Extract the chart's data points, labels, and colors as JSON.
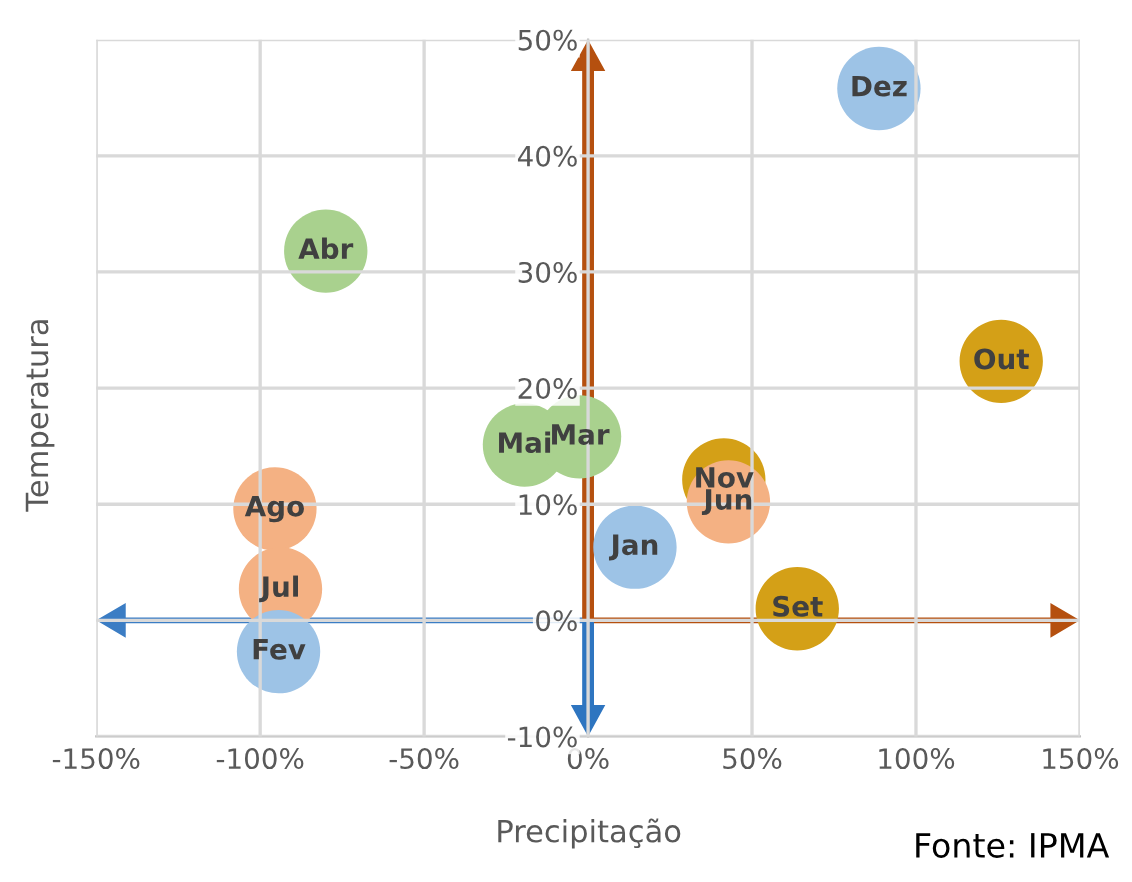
{
  "chart_data": {
    "type": "scatter",
    "xlabel": "Precipitação",
    "ylabel": "Temperatura",
    "annotations": [
      "Fonte: IPMA"
    ],
    "xlim": [
      -150,
      150
    ],
    "ylim": [
      -10,
      50
    ],
    "xticks": [
      {
        "value": -150,
        "label": "-150%"
      },
      {
        "value": -100,
        "label": "-100%"
      },
      {
        "value": -50,
        "label": "-50%"
      },
      {
        "value": 0,
        "label": "0%"
      },
      {
        "value": 50,
        "label": "50%"
      },
      {
        "value": 100,
        "label": "100%"
      },
      {
        "value": 150,
        "label": "150%"
      }
    ],
    "yticks": [
      {
        "value": -10,
        "label": "-10%"
      },
      {
        "value": 0,
        "label": "0%"
      },
      {
        "value": 10,
        "label": "10%"
      },
      {
        "value": 20,
        "label": "20%"
      },
      {
        "value": 30,
        "label": "30%"
      },
      {
        "value": 40,
        "label": "40%"
      },
      {
        "value": 50,
        "label": "50%"
      }
    ],
    "grid": true,
    "marker": "circle",
    "series": [
      {
        "name": "Dez",
        "color": "#9dc3e6",
        "x": [
          88.7
        ],
        "values": [
          45.8
        ]
      },
      {
        "name": "Abr",
        "color": "#a9d18e",
        "x": [
          -80
        ],
        "values": [
          31.8
        ]
      },
      {
        "name": "Out",
        "color": "#d4a017",
        "x": [
          126
        ],
        "values": [
          22.3
        ]
      },
      {
        "name": "Mai",
        "color": "#a9d18e",
        "x": [
          -19.4
        ],
        "values": [
          15.1
        ]
      },
      {
        "name": "Mar",
        "color": "#a9d18e",
        "x": [
          -2.6
        ],
        "values": [
          15.8
        ]
      },
      {
        "name": "Nov",
        "color": "#d4a017",
        "x": [
          41.4
        ],
        "values": [
          12.1
        ]
      },
      {
        "name": "Jun",
        "color": "#f4b183",
        "x": [
          42.8
        ],
        "values": [
          10.2
        ]
      },
      {
        "name": "Ago",
        "color": "#f4b183",
        "x": [
          -95.5
        ],
        "values": [
          9.6
        ]
      },
      {
        "name": "Jan",
        "color": "#9dc3e6",
        "x": [
          14.3
        ],
        "values": [
          6.3
        ]
      },
      {
        "name": "Jul",
        "color": "#f4b183",
        "x": [
          -93.8
        ],
        "values": [
          2.7
        ]
      },
      {
        "name": "Set",
        "color": "#d4a017",
        "x": [
          63.8
        ],
        "values": [
          1.0
        ]
      },
      {
        "name": "Fev",
        "color": "#9dc3e6",
        "x": [
          -94.4
        ],
        "values": [
          -2.7
        ]
      }
    ]
  }
}
